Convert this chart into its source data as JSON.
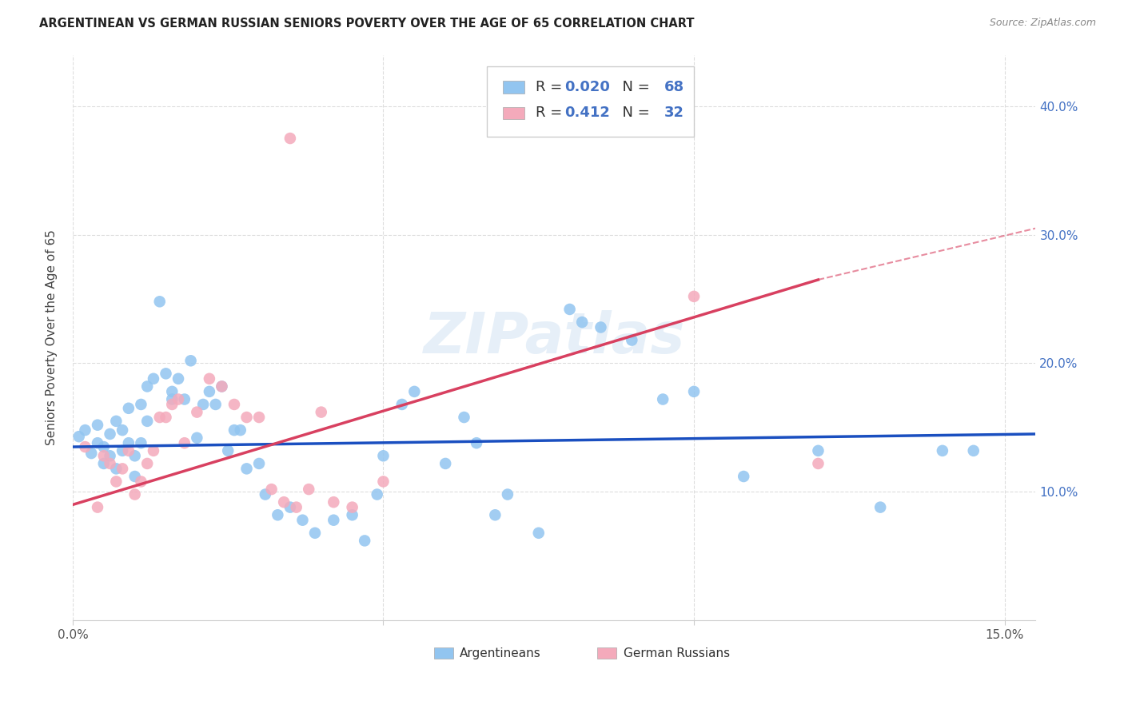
{
  "title": "ARGENTINEAN VS GERMAN RUSSIAN SENIORS POVERTY OVER THE AGE OF 65 CORRELATION CHART",
  "source": "Source: ZipAtlas.com",
  "ylabel": "Seniors Poverty Over the Age of 65",
  "xlim": [
    0.0,
    0.155
  ],
  "ylim": [
    0.0,
    0.44
  ],
  "blue_color": "#92C5F0",
  "pink_color": "#F4AABB",
  "trendline_blue": "#1A4FC0",
  "trendline_pink": "#D84060",
  "watermark": "ZIPatlas",
  "argentinean_x": [
    0.001,
    0.002,
    0.003,
    0.004,
    0.004,
    0.005,
    0.005,
    0.006,
    0.006,
    0.007,
    0.007,
    0.008,
    0.008,
    0.009,
    0.009,
    0.01,
    0.01,
    0.011,
    0.011,
    0.012,
    0.012,
    0.013,
    0.014,
    0.015,
    0.016,
    0.016,
    0.017,
    0.018,
    0.019,
    0.02,
    0.021,
    0.022,
    0.023,
    0.024,
    0.025,
    0.026,
    0.027,
    0.028,
    0.03,
    0.031,
    0.033,
    0.035,
    0.037,
    0.039,
    0.042,
    0.045,
    0.047,
    0.049,
    0.05,
    0.053,
    0.055,
    0.06,
    0.063,
    0.065,
    0.068,
    0.07,
    0.075,
    0.08,
    0.082,
    0.085,
    0.09,
    0.095,
    0.1,
    0.108,
    0.12,
    0.13,
    0.14,
    0.145
  ],
  "argentinean_y": [
    0.143,
    0.148,
    0.13,
    0.138,
    0.152,
    0.122,
    0.135,
    0.128,
    0.145,
    0.118,
    0.155,
    0.132,
    0.148,
    0.138,
    0.165,
    0.128,
    0.112,
    0.138,
    0.168,
    0.155,
    0.182,
    0.188,
    0.248,
    0.192,
    0.178,
    0.172,
    0.188,
    0.172,
    0.202,
    0.142,
    0.168,
    0.178,
    0.168,
    0.182,
    0.132,
    0.148,
    0.148,
    0.118,
    0.122,
    0.098,
    0.082,
    0.088,
    0.078,
    0.068,
    0.078,
    0.082,
    0.062,
    0.098,
    0.128,
    0.168,
    0.178,
    0.122,
    0.158,
    0.138,
    0.082,
    0.098,
    0.068,
    0.242,
    0.232,
    0.228,
    0.218,
    0.172,
    0.178,
    0.112,
    0.132,
    0.088,
    0.132,
    0.132
  ],
  "german_russian_x": [
    0.002,
    0.004,
    0.005,
    0.006,
    0.007,
    0.008,
    0.009,
    0.01,
    0.011,
    0.012,
    0.013,
    0.014,
    0.015,
    0.016,
    0.017,
    0.018,
    0.02,
    0.022,
    0.024,
    0.026,
    0.028,
    0.03,
    0.032,
    0.034,
    0.036,
    0.038,
    0.04,
    0.042,
    0.045,
    0.05,
    0.035,
    0.1,
    0.12
  ],
  "german_russian_y": [
    0.135,
    0.088,
    0.128,
    0.122,
    0.108,
    0.118,
    0.132,
    0.098,
    0.108,
    0.122,
    0.132,
    0.158,
    0.158,
    0.168,
    0.172,
    0.138,
    0.162,
    0.188,
    0.182,
    0.168,
    0.158,
    0.158,
    0.102,
    0.092,
    0.088,
    0.102,
    0.162,
    0.092,
    0.088,
    0.108,
    0.375,
    0.252,
    0.122
  ]
}
